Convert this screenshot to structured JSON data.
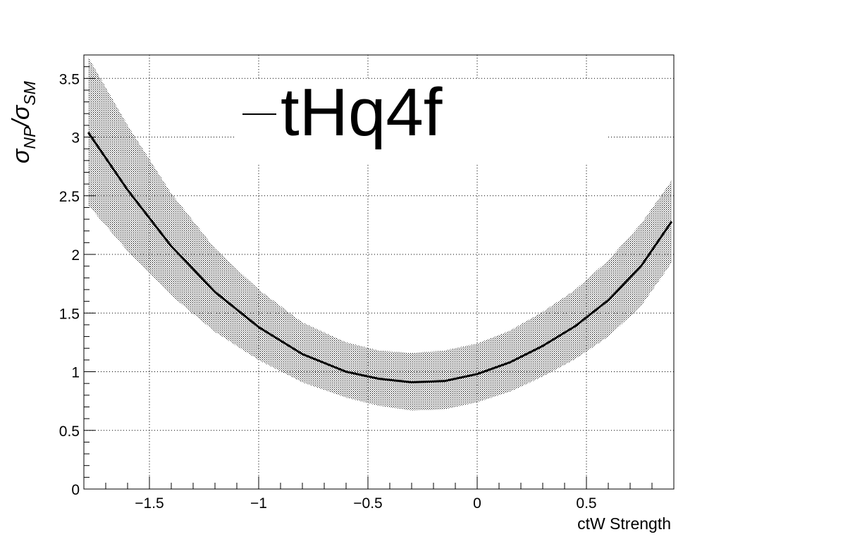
{
  "chart_data": {
    "type": "line",
    "xlabel": "ctW Strength",
    "ylabel_main": "σ",
    "ylabel_sub1": "NP",
    "ylabel_sep": "/σ",
    "ylabel_sub2": "SM",
    "xlim": [
      -1.8,
      0.9
    ],
    "ylim": [
      0,
      3.7
    ],
    "grid": true,
    "legend_position": "top-center",
    "x_ticks": [
      -1.5,
      -1,
      -0.5,
      0,
      0.5
    ],
    "x_tick_labels": [
      "−1.5",
      "−1",
      "−0.5",
      "0",
      "0.5"
    ],
    "y_ticks": [
      0,
      0.5,
      1,
      1.5,
      2,
      2.5,
      3,
      3.5
    ],
    "y_tick_labels": [
      "0",
      "0.5",
      "1",
      "1.5",
      "2",
      "2.5",
      "3",
      "3.5"
    ],
    "series": [
      {
        "name": "tHq4f",
        "color": "#000000",
        "x": [
          -1.78,
          -1.6,
          -1.4,
          -1.2,
          -1.0,
          -0.8,
          -0.6,
          -0.45,
          -0.3,
          -0.15,
          0.0,
          0.15,
          0.3,
          0.45,
          0.6,
          0.75,
          0.89
        ],
        "y": [
          3.04,
          2.55,
          2.07,
          1.68,
          1.38,
          1.15,
          1.0,
          0.94,
          0.91,
          0.92,
          0.98,
          1.08,
          1.22,
          1.39,
          1.61,
          1.9,
          2.28
        ],
        "band_lower": [
          2.42,
          2.03,
          1.65,
          1.34,
          1.1,
          0.91,
          0.78,
          0.71,
          0.67,
          0.68,
          0.74,
          0.83,
          0.96,
          1.11,
          1.3,
          1.56,
          1.93
        ],
        "band_upper": [
          3.68,
          3.1,
          2.52,
          2.05,
          1.7,
          1.42,
          1.25,
          1.18,
          1.16,
          1.18,
          1.24,
          1.35,
          1.51,
          1.7,
          1.95,
          2.26,
          2.63
        ]
      }
    ]
  }
}
